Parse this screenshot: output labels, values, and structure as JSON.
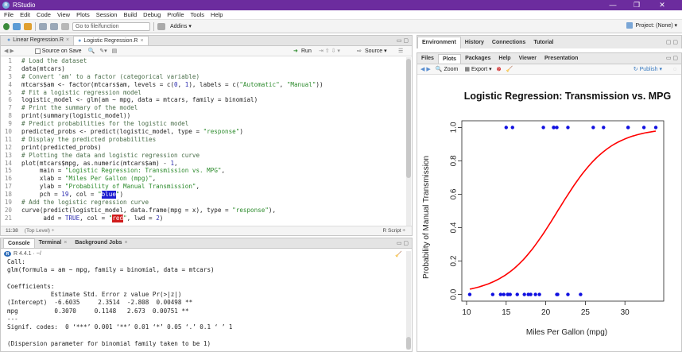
{
  "window": {
    "title": "RStudio",
    "minimize": "—",
    "restore": "❐",
    "close": "✕"
  },
  "menu": [
    "File",
    "Edit",
    "Code",
    "View",
    "Plots",
    "Session",
    "Build",
    "Debug",
    "Profile",
    "Tools",
    "Help"
  ],
  "toolbar": {
    "goto_placeholder": "Go to file/function",
    "addins": "Addins ▾",
    "project": "Project: (None) ▾"
  },
  "editor": {
    "tabs": [
      {
        "label": "Linear Regression.R",
        "active": false
      },
      {
        "label": "Logistic Regression.R",
        "active": true
      }
    ],
    "source_on_save": "Source on Save",
    "run": "Run",
    "source": "Source ▾",
    "status_pos": "11:38",
    "status_scope": "(Top Level) ÷",
    "status_type": "R Script ÷",
    "lines": [
      {
        "n": "1",
        "parts": [
          {
            "t": "# Load the dataset",
            "c": "cmt"
          }
        ]
      },
      {
        "n": "2",
        "parts": [
          {
            "t": "data(mtcars)",
            "c": ""
          }
        ]
      },
      {
        "n": "3",
        "parts": [
          {
            "t": "# Convert 'am' to a factor (categorical variable)",
            "c": "cmt"
          }
        ]
      },
      {
        "n": "4",
        "parts": [
          {
            "t": "mtcars$am <- factor(mtcars$am, levels = c(",
            "c": ""
          },
          {
            "t": "0",
            "c": "num"
          },
          {
            "t": ", ",
            "c": ""
          },
          {
            "t": "1",
            "c": "num"
          },
          {
            "t": "), labels = c(",
            "c": ""
          },
          {
            "t": "\"Automatic\"",
            "c": "str"
          },
          {
            "t": ", ",
            "c": ""
          },
          {
            "t": "\"Manual\"",
            "c": "str"
          },
          {
            "t": "))",
            "c": ""
          }
        ]
      },
      {
        "n": "5",
        "parts": [
          {
            "t": "# Fit a logistic regression model",
            "c": "cmt"
          }
        ]
      },
      {
        "n": "6",
        "parts": [
          {
            "t": "logistic_model <- glm(am ~ mpg, data = mtcars, family = binomial)",
            "c": ""
          }
        ]
      },
      {
        "n": "7",
        "parts": [
          {
            "t": "# Print the summary of the model",
            "c": "cmt"
          }
        ]
      },
      {
        "n": "8",
        "parts": [
          {
            "t": "print(summary(logistic_model))",
            "c": ""
          }
        ]
      },
      {
        "n": "9",
        "parts": [
          {
            "t": "# Predict probabilities for the logistic model",
            "c": "cmt"
          }
        ]
      },
      {
        "n": "10",
        "parts": [
          {
            "t": "predicted_probs <- predict(logistic_model, type = ",
            "c": ""
          },
          {
            "t": "\"response\"",
            "c": "str"
          },
          {
            "t": ")",
            "c": ""
          }
        ]
      },
      {
        "n": "11",
        "parts": [
          {
            "t": "# Display the predicted probabilities",
            "c": "cmt"
          }
        ]
      },
      {
        "n": "12",
        "parts": [
          {
            "t": "print(predicted_probs)",
            "c": ""
          }
        ]
      },
      {
        "n": "13",
        "parts": [
          {
            "t": "# Plotting the data and logistic regression curve",
            "c": "cmt"
          }
        ]
      },
      {
        "n": "14",
        "parts": [
          {
            "t": "plot(mtcars$mpg, as.numeric(mtcars$am) - ",
            "c": ""
          },
          {
            "t": "1",
            "c": "num"
          },
          {
            "t": ",",
            "c": ""
          }
        ]
      },
      {
        "n": "15",
        "parts": [
          {
            "t": "     main = ",
            "c": ""
          },
          {
            "t": "\"Logistic Regression: Transmission vs. MPG\"",
            "c": "str"
          },
          {
            "t": ",",
            "c": ""
          }
        ]
      },
      {
        "n": "16",
        "parts": [
          {
            "t": "     xlab = ",
            "c": ""
          },
          {
            "t": "\"Miles Per Gallon (mpg)\"",
            "c": "str"
          },
          {
            "t": ",",
            "c": ""
          }
        ]
      },
      {
        "n": "17",
        "parts": [
          {
            "t": "     ylab = ",
            "c": ""
          },
          {
            "t": "\"Probability of Manual Transmission\"",
            "c": "str"
          },
          {
            "t": ",",
            "c": ""
          }
        ]
      },
      {
        "n": "18",
        "parts": [
          {
            "t": "     pch = ",
            "c": ""
          },
          {
            "t": "19",
            "c": "num"
          },
          {
            "t": ", col = ",
            "c": ""
          },
          {
            "t": "\"",
            "c": "str"
          },
          {
            "t": "blue",
            "c": "sel-blue"
          },
          {
            "t": "\"",
            "c": "str"
          },
          {
            "t": ")",
            "c": ""
          }
        ]
      },
      {
        "n": "19",
        "parts": [
          {
            "t": "# Add the logistic regression curve",
            "c": "cmt"
          }
        ]
      },
      {
        "n": "20",
        "parts": [
          {
            "t": "curve(predict(logistic_model, data.frame(mpg = x), type = ",
            "c": ""
          },
          {
            "t": "\"response\"",
            "c": "str"
          },
          {
            "t": "),",
            "c": ""
          }
        ]
      },
      {
        "n": "21",
        "parts": [
          {
            "t": "      add = ",
            "c": ""
          },
          {
            "t": "TRUE",
            "c": "kw"
          },
          {
            "t": ", col = ",
            "c": ""
          },
          {
            "t": "\"",
            "c": "str"
          },
          {
            "t": "red",
            "c": "sel-red"
          },
          {
            "t": "\"",
            "c": "str"
          },
          {
            "t": ", lwd = ",
            "c": ""
          },
          {
            "t": "2",
            "c": "num"
          },
          {
            "t": ")",
            "c": ""
          }
        ]
      }
    ]
  },
  "console": {
    "tabs": [
      {
        "label": "Console",
        "active": true
      },
      {
        "label": "Terminal",
        "active": false
      },
      {
        "label": "Background Jobs",
        "active": false
      }
    ],
    "r_version": "R 4.4.1 · ~/",
    "lines": [
      "Call:",
      "glm(formula = am ~ mpg, family = binomial, data = mtcars)",
      "",
      "Coefficients:",
      "            Estimate Std. Error z value Pr(>|z|)",
      "(Intercept)  -6.6035     2.3514  -2.808  0.00498 **",
      "mpg          0.3070     0.1148   2.673  0.00751 **",
      "---",
      "Signif. codes:  0 ‘***’ 0.001 ‘**’ 0.01 ‘*’ 0.05 ‘.’ 0.1 ‘ ’ 1",
      "",
      "(Dispersion parameter for binomial family taken to be 1)"
    ]
  },
  "env_pane": {
    "tabs": [
      "Environment",
      "History",
      "Connections",
      "Tutorial"
    ]
  },
  "files_pane": {
    "tabs": [
      {
        "label": "Files",
        "active": false
      },
      {
        "label": "Plots",
        "active": true
      },
      {
        "label": "Packages",
        "active": false
      },
      {
        "label": "Help",
        "active": false
      },
      {
        "label": "Viewer",
        "active": false
      },
      {
        "label": "Presentation",
        "active": false
      }
    ],
    "zoom": "Zoom",
    "export": "Export ▾",
    "publish": "Publish ▾"
  },
  "chart_data": {
    "type": "scatter",
    "title": "Logistic Regression: Transmission vs. MPG",
    "xlabel": "Miles Per Gallon (mpg)",
    "ylabel": "Probability of Manual Transmission",
    "xlim": [
      10,
      34
    ],
    "ylim": [
      0,
      1
    ],
    "xticks": [
      "10",
      "15",
      "20",
      "25",
      "30"
    ],
    "yticks": [
      "0.0",
      "0.2",
      "0.4",
      "0.6",
      "0.8",
      "1.0"
    ],
    "point_color": "#1010e0",
    "curve_color": "#ff0000",
    "points_y0": [
      10.4,
      13.3,
      14.3,
      14.7,
      15.2,
      15.2,
      15.5,
      16.4,
      17.3,
      17.8,
      18.1,
      18.7,
      19.2,
      21.4,
      21.5,
      22.8,
      24.4
    ],
    "points_y1": [
      15.0,
      15.8,
      19.7,
      21.0,
      21.4,
      21.0,
      22.8,
      26.0,
      27.3,
      30.4,
      30.4,
      32.4,
      33.9
    ],
    "curve": {
      "intercept": -6.6035,
      "slope": 0.307,
      "from": 10.4,
      "to": 33.9
    }
  }
}
